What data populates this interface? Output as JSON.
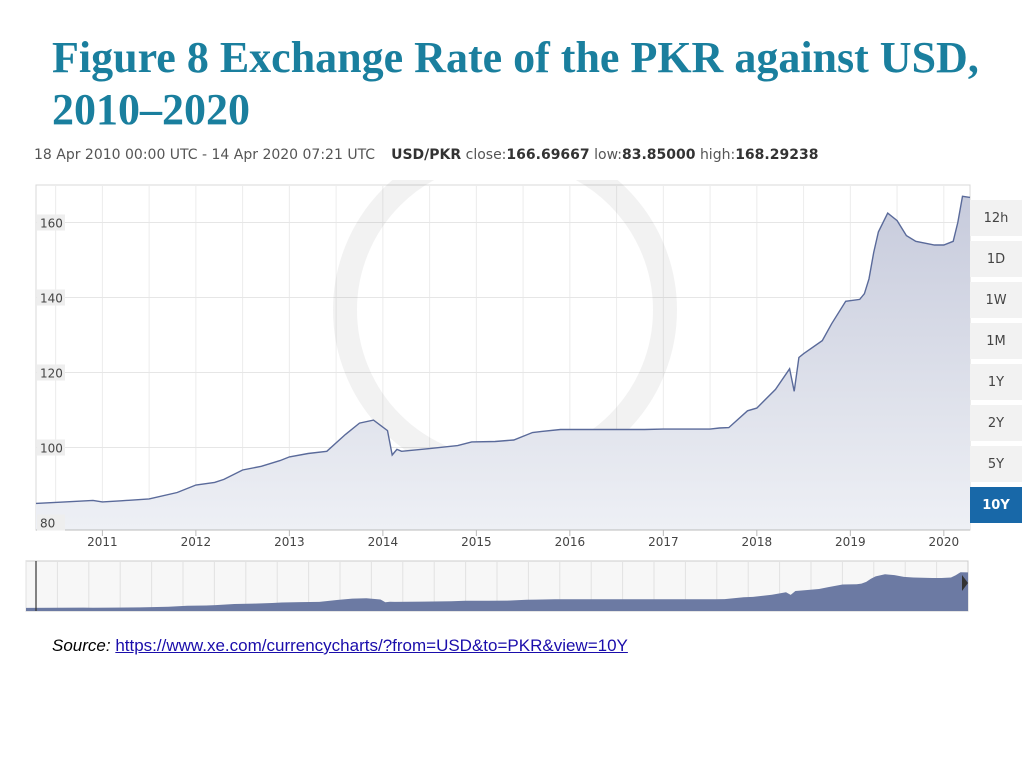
{
  "title": "Figure 8 Exchange Rate of the PKR against USD, 2010–2020",
  "info": {
    "date_range": "18 Apr 2010 00:00 UTC - 14 Apr 2020 07:21 UTC",
    "pair": "USD/PKR",
    "close_label": "close:",
    "close_value": "166.69667",
    "low_label": "low:",
    "low_value": "83.85000",
    "high_label": "high:",
    "high_value": "168.29238"
  },
  "range_buttons": [
    "12h",
    "1D",
    "1W",
    "1M",
    "1Y",
    "2Y",
    "5Y",
    "10Y"
  ],
  "active_range": "10Y",
  "source": {
    "label": "Source:",
    "url": "https://www.xe.com/currencycharts/?from=USD&to=PKR&view=10Y"
  },
  "chart_data": {
    "type": "area",
    "title": "",
    "xlabel": "",
    "ylabel": "",
    "y_ticks": [
      80,
      100,
      120,
      140,
      160
    ],
    "x_ticks": [
      "2011",
      "2012",
      "2013",
      "2014",
      "2015",
      "2016",
      "2017",
      "2018",
      "2019",
      "2020"
    ],
    "xlim": [
      2010.29,
      2020.28
    ],
    "ylim": [
      78,
      170
    ],
    "grid": true,
    "series": [
      {
        "x": [
          2010.29,
          2010.6,
          2010.9,
          2011.0,
          2011.2,
          2011.5,
          2011.8,
          2012.0,
          2012.2,
          2012.3,
          2012.5,
          2012.7,
          2012.9,
          2013.0,
          2013.2,
          2013.4,
          2013.6,
          2013.75,
          2013.9,
          2014.05,
          2014.1,
          2014.15,
          2014.2,
          2014.5,
          2014.8,
          2014.95,
          2015.2,
          2015.4,
          2015.6,
          2015.7,
          2015.9,
          2016.2,
          2016.5,
          2016.8,
          2017.0,
          2017.2,
          2017.5,
          2017.6,
          2017.7,
          2017.9,
          2018.0,
          2018.2,
          2018.35,
          2018.4,
          2018.45,
          2018.5,
          2018.7,
          2018.8,
          2018.95,
          2019.1,
          2019.15,
          2019.2,
          2019.25,
          2019.3,
          2019.4,
          2019.5,
          2019.6,
          2019.7,
          2019.9,
          2020.0,
          2020.1,
          2020.15,
          2020.2,
          2020.28
        ],
        "y": [
          85.1,
          85.5,
          85.9,
          85.5,
          85.8,
          86.3,
          88.0,
          90.0,
          90.7,
          91.5,
          94.0,
          95.0,
          96.5,
          97.5,
          98.4,
          99.0,
          103.5,
          106.5,
          107.3,
          104.5,
          98.0,
          99.5,
          99.0,
          99.7,
          100.5,
          101.5,
          101.6,
          102.0,
          104.0,
          104.3,
          104.8,
          104.8,
          104.8,
          104.8,
          104.9,
          104.9,
          104.9,
          105.2,
          105.3,
          109.8,
          110.5,
          115.5,
          121.0,
          115.0,
          124.0,
          125.0,
          128.5,
          133.0,
          139.0,
          139.5,
          141.0,
          145.0,
          152.0,
          157.5,
          162.5,
          160.5,
          156.5,
          155.0,
          154.0,
          154.0,
          155.0,
          160.0,
          167.0,
          166.69667
        ]
      }
    ]
  }
}
